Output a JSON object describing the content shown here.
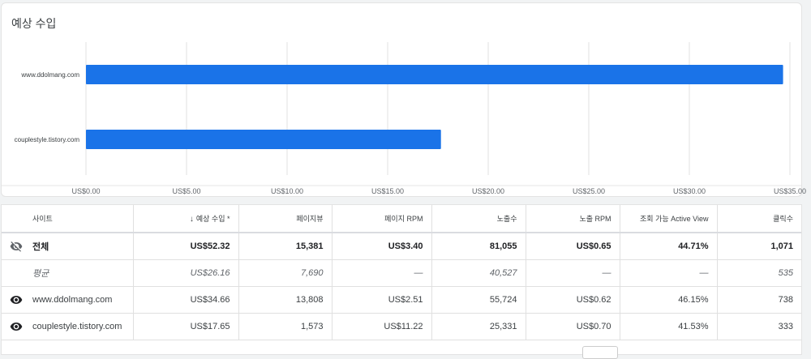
{
  "chart_data": {
    "type": "bar",
    "orientation": "horizontal",
    "title": "예상 수입",
    "categories": [
      "www.ddolmang.com",
      "couplestyle.tistory.com"
    ],
    "values": [
      34.66,
      17.65
    ],
    "xlim": [
      0,
      35
    ],
    "xticks": [
      "US$0.00",
      "US$5.00",
      "US$10.00",
      "US$15.00",
      "US$20.00",
      "US$25.00",
      "US$30.00",
      "US$35.00"
    ],
    "grid": true,
    "bar_color": "#1a73e8"
  },
  "table": {
    "headers": [
      "사이트",
      "예상 수입 *",
      "페이지뷰",
      "페이지 RPM",
      "노출수",
      "노출 RPM",
      "조회 가능 Active View",
      "클릭수"
    ],
    "sort_arrow": "↓",
    "rows": [
      {
        "kind": "total",
        "icon": "eye-off-icon",
        "site": "전체",
        "cells": [
          "US$52.32",
          "15,381",
          "US$3.40",
          "81,055",
          "US$0.65",
          "44.71%",
          "1,071"
        ]
      },
      {
        "kind": "avg",
        "icon": "",
        "site": "평균",
        "cells": [
          "US$26.16",
          "7,690",
          "—",
          "40,527",
          "—",
          "—",
          "535"
        ]
      },
      {
        "kind": "row",
        "icon": "eye-icon",
        "site": "www.ddolmang.com",
        "cells": [
          "US$34.66",
          "13,808",
          "US$2.51",
          "55,724",
          "US$0.62",
          "46.15%",
          "738"
        ]
      },
      {
        "kind": "row",
        "icon": "eye-icon",
        "site": "couplestyle.tistory.com",
        "cells": [
          "US$17.65",
          "1,573",
          "US$11.22",
          "25,331",
          "US$0.70",
          "41.53%",
          "333"
        ]
      }
    ]
  }
}
